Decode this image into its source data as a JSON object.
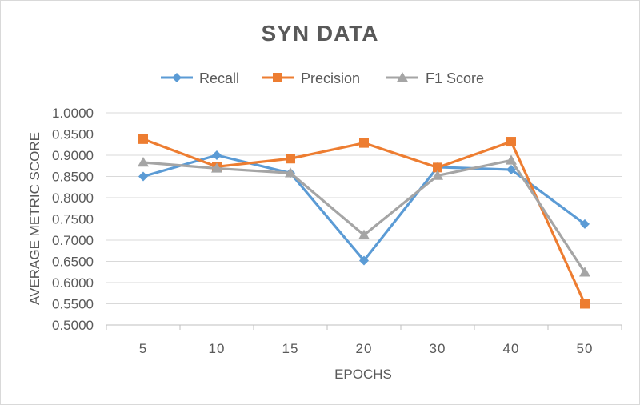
{
  "chart_data": {
    "type": "line",
    "title": "SYN DATA",
    "xlabel": "EPOCHS",
    "ylabel": "AVERAGE METRIC SCORE",
    "categories": [
      "5",
      "10",
      "15",
      "20",
      "30",
      "40",
      "50"
    ],
    "ylim": [
      0.5,
      1.0
    ],
    "yticks": [
      "0.5000",
      "0.5500",
      "0.6000",
      "0.6500",
      "0.7000",
      "0.7500",
      "0.8000",
      "0.8500",
      "0.9000",
      "0.9500",
      "1.0000"
    ],
    "grid": "horizontal",
    "legend_position": "top",
    "series": [
      {
        "name": "Recall",
        "color": "#5B9BD5",
        "marker": "diamond",
        "values": [
          0.85,
          0.9,
          0.858,
          0.652,
          0.872,
          0.866,
          0.738
        ]
      },
      {
        "name": "Precision",
        "color": "#ED7D31",
        "marker": "square",
        "values": [
          0.938,
          0.873,
          0.892,
          0.929,
          0.871,
          0.932,
          0.55
        ]
      },
      {
        "name": "F1 Score",
        "color": "#A5A5A5",
        "marker": "triangle",
        "values": [
          0.883,
          0.869,
          0.858,
          0.712,
          0.852,
          0.888,
          0.624
        ]
      }
    ]
  }
}
